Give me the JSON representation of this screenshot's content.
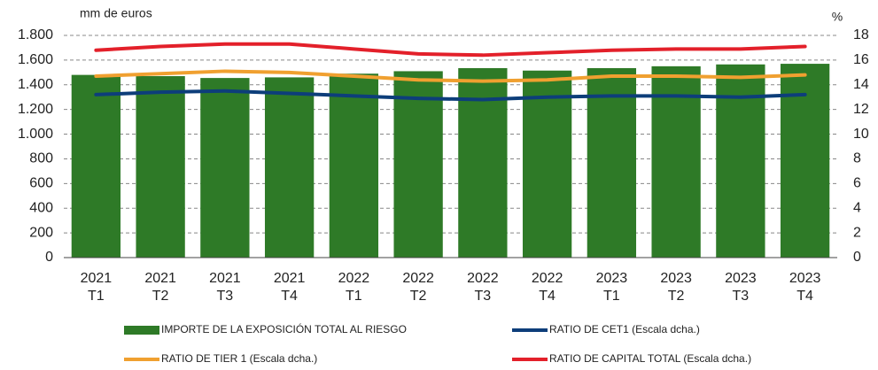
{
  "chart_data": {
    "type": "bar_line",
    "ylabel": "mm de euros",
    "y2label": "%",
    "categories": [
      [
        "2021",
        "T1"
      ],
      [
        "2021",
        "T2"
      ],
      [
        "2021",
        "T3"
      ],
      [
        "2021",
        "T4"
      ],
      [
        "2022",
        "T1"
      ],
      [
        "2022",
        "T2"
      ],
      [
        "2022",
        "T3"
      ],
      [
        "2022",
        "T4"
      ],
      [
        "2023",
        "T1"
      ],
      [
        "2023",
        "T2"
      ],
      [
        "2023",
        "T3"
      ],
      [
        "2023",
        "T4"
      ]
    ],
    "series": [
      {
        "name": "IMPORTE DE LA EXPOSICIÓN TOTAL AL RIESGO",
        "color": "#2e7a27",
        "kind": "bar",
        "values": [
          1480,
          1470,
          1455,
          1460,
          1490,
          1510,
          1535,
          1515,
          1535,
          1550,
          1565,
          1570
        ]
      },
      {
        "name": "RATIO DE CET1 (Escala dcha.)",
        "color": "#0d3e7a",
        "kind": "line",
        "axis": "y2",
        "values": [
          13.2,
          13.4,
          13.5,
          13.3,
          13.1,
          12.9,
          12.8,
          13.0,
          13.1,
          13.1,
          13.0,
          13.2
        ]
      },
      {
        "name": "RATIO DE TIER 1 (Escala dcha.)",
        "color": "#f0a030",
        "kind": "line",
        "axis": "y2",
        "values": [
          14.7,
          14.9,
          15.1,
          15.0,
          14.7,
          14.4,
          14.3,
          14.4,
          14.7,
          14.7,
          14.6,
          14.8
        ]
      },
      {
        "name": "RATIO DE CAPITAL TOTAL (Escala dcha.)",
        "color": "#e3202a",
        "kind": "line",
        "axis": "y2",
        "values": [
          16.8,
          17.1,
          17.3,
          17.3,
          16.9,
          16.5,
          16.4,
          16.6,
          16.8,
          16.9,
          16.9,
          17.1
        ]
      }
    ],
    "ylim": [
      0,
      1800
    ],
    "yticks": [
      0,
      200,
      400,
      600,
      800,
      {
        "value": 1000,
        "label": "1.000"
      },
      {
        "value": 1200,
        "label": "1.200"
      },
      {
        "value": 1400,
        "label": "1.400"
      },
      {
        "value": 1600,
        "label": "1.600"
      },
      {
        "value": 1800,
        "label": "1.800"
      }
    ],
    "y2lim": [
      0,
      18
    ],
    "y2ticks": [
      0,
      2,
      4,
      6,
      8,
      10,
      12,
      14,
      16,
      18
    ],
    "grid": true
  }
}
